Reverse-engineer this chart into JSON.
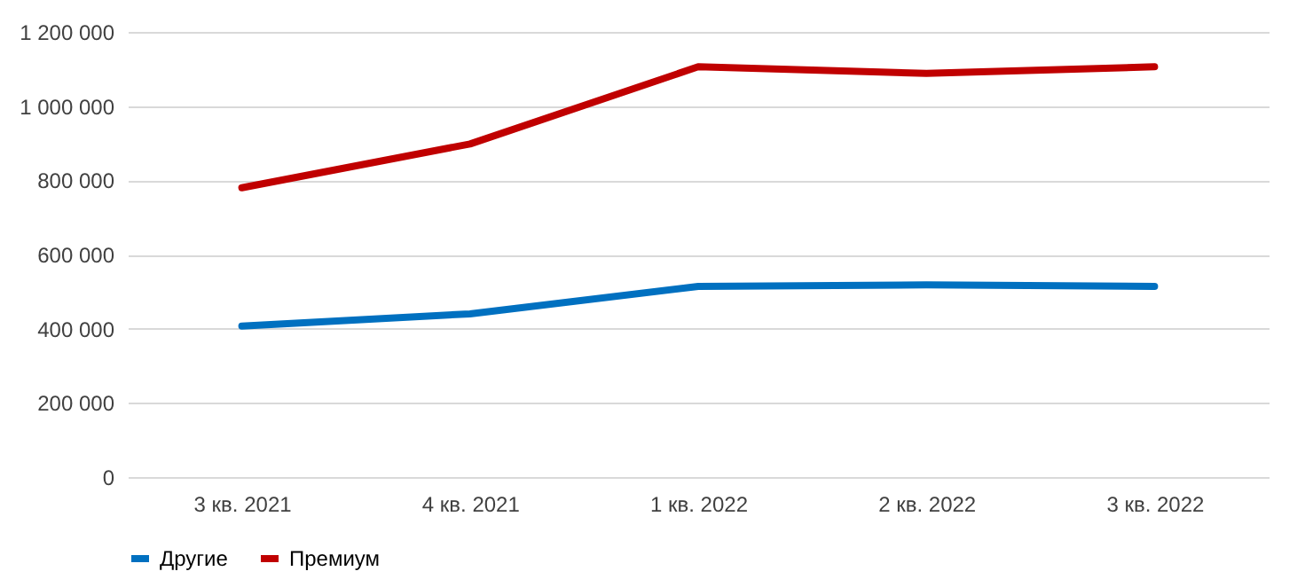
{
  "chart_data": {
    "type": "line",
    "categories": [
      "3 кв. 2021",
      "4 кв. 2021",
      "1 кв. 2022",
      "2 кв. 2022",
      "3 кв. 2022"
    ],
    "series": [
      {
        "name": "Другие",
        "color": "#0070c0",
        "values": [
          407000,
          440000,
          514000,
          518000,
          514000
        ]
      },
      {
        "name": "Премиум",
        "color": "#c00000",
        "values": [
          780000,
          898000,
          1106000,
          1088000,
          1106000
        ]
      }
    ],
    "ylim": [
      0,
      1200000
    ],
    "yticks": [
      0,
      {
        "value": 200000,
        "label": "200 000"
      },
      {
        "value": 400000,
        "label": "400 000"
      },
      {
        "value": 600000,
        "label": "600 000"
      },
      {
        "value": 800000,
        "label": "800 000"
      },
      {
        "value": 1000000,
        "label": "1 000 000"
      },
      {
        "value": 1200000,
        "label": "1 200 000"
      }
    ],
    "grid": "y",
    "legend": "bottom",
    "marker": "none",
    "line_style": "solid"
  }
}
